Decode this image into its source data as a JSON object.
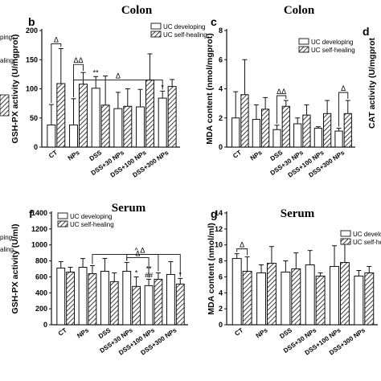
{
  "figure": {
    "left_fragment": {
      "legend_top": [
        "ping",
        "aling"
      ],
      "legend_bottom": [
        "ping",
        "aling"
      ]
    },
    "right_fragment": {
      "ylabel_top": "CAT activity (U/mgprot",
      "label_bottom": ""
    }
  },
  "chart_data": [
    {
      "id": "panel-b",
      "type": "bar",
      "panel_label": "b",
      "title": "Colon",
      "ylabel": "GSH-PX activity (U/mgprot)",
      "ylim": [
        0,
        200
      ],
      "yticks": [
        0,
        50,
        100,
        150,
        200
      ],
      "categories": [
        "CT",
        "NPs",
        "DSS",
        "DSS+30 NPs",
        "DSS+100 NPs",
        "DSS+300 NPs"
      ],
      "legend": [
        "UC developing",
        "UC self-healing"
      ],
      "series": [
        {
          "name": "UC developing",
          "values": [
            38,
            38,
            101,
            66,
            69,
            84
          ],
          "errors": [
            35,
            45,
            20,
            28,
            30,
            12
          ]
        },
        {
          "name": "UC self-healing",
          "values": [
            109,
            108,
            72,
            70,
            115,
            104
          ],
          "errors": [
            60,
            20,
            50,
            30,
            45,
            12
          ]
        }
      ],
      "bar_annotations": [
        {
          "category": 2,
          "series": 0,
          "text": "**"
        },
        {
          "category": 5,
          "series": 0,
          "text": "*"
        }
      ],
      "significance": [
        {
          "text": "Δ",
          "from": [
            0,
            0
          ],
          "to": [
            0,
            1
          ]
        },
        {
          "text": "ΔΔ",
          "from": [
            1,
            0
          ],
          "to": [
            1,
            1
          ]
        },
        {
          "text": "Δ",
          "from": [
            1,
            0
          ],
          "to": [
            5,
            0
          ]
        }
      ]
    },
    {
      "id": "panel-c",
      "type": "bar",
      "panel_label": "c",
      "title": "Colon",
      "ylabel": "MDA content (nmol/mgprot)",
      "ylim": [
        0,
        8
      ],
      "yticks": [
        0,
        2,
        4,
        6,
        8
      ],
      "categories": [
        "CT",
        "NPs",
        "DSS",
        "DSS+30 NPs",
        "DSS+100 NPs",
        "DSS+300 NPs"
      ],
      "legend": [
        "UC developing",
        "UC self-healing"
      ],
      "series": [
        {
          "name": "UC developing",
          "values": [
            2.0,
            1.9,
            1.2,
            1.6,
            1.3,
            1.1
          ],
          "errors": [
            1.8,
            1.0,
            0.3,
            0.4,
            0.1,
            0.2
          ]
        },
        {
          "name": "UC self-healing",
          "values": [
            3.6,
            2.6,
            2.8,
            2.2,
            2.3,
            2.3
          ],
          "errors": [
            2.4,
            0.8,
            0.4,
            0.7,
            0.9,
            0.9
          ]
        }
      ],
      "bar_annotations": [],
      "significance": [
        {
          "text": "ΔΔ",
          "from": [
            2,
            0
          ],
          "to": [
            2,
            1
          ]
        },
        {
          "text": "Δ",
          "from": [
            5,
            0
          ],
          "to": [
            5,
            1
          ]
        }
      ]
    },
    {
      "id": "panel-f",
      "type": "bar",
      "panel_label": "f",
      "title": "Serum",
      "ylabel": "GSH-PX activity (U/ml)",
      "ylim": [
        0,
        1400
      ],
      "yticks": [
        0,
        200,
        400,
        600,
        800,
        1000,
        1200,
        1400
      ],
      "categories": [
        "CT",
        "NPs",
        "DSS",
        "DSS+30 NPs",
        "DSS+100 NPs",
        "DSS+300 NPs"
      ],
      "legend": [
        "UC developing",
        "UC self-healing"
      ],
      "series": [
        {
          "name": "UC developing",
          "values": [
            710,
            720,
            670,
            670,
            490,
            630
          ],
          "errors": [
            80,
            110,
            160,
            110,
            80,
            160
          ]
        },
        {
          "name": "UC self-healing",
          "values": [
            660,
            640,
            540,
            480,
            570,
            510
          ],
          "errors": [
            60,
            100,
            110,
            120,
            80,
            70
          ]
        }
      ],
      "bar_annotations": [
        {
          "category": 3,
          "series": 1,
          "text": "*"
        },
        {
          "category": 4,
          "series": 0,
          "text": "##"
        },
        {
          "category": 4,
          "series": 0,
          "text": "**"
        },
        {
          "category": 5,
          "series": 1,
          "text": "*"
        }
      ],
      "significance": [
        {
          "text": "Δ",
          "from": [
            3,
            0
          ],
          "to": [
            4,
            0
          ]
        },
        {
          "text": "Δ",
          "from": [
            3,
            0
          ],
          "to": [
            4,
            1
          ]
        },
        {
          "text": "^",
          "from": [
            1,
            1
          ],
          "to": [
            5,
            1
          ]
        }
      ]
    },
    {
      "id": "panel-g",
      "type": "bar",
      "panel_label": "g",
      "title": "Serum",
      "ylabel": "MDA content (nmol/ml)",
      "ylim": [
        0,
        14
      ],
      "yticks": [
        0,
        2,
        4,
        6,
        8,
        10,
        12,
        14
      ],
      "categories": [
        "CT",
        "NPs",
        "DSS",
        "DSS+30 NPs",
        "DSS+100 NPs",
        "DSS+300 NPs"
      ],
      "legend": [
        "UC developi",
        "UC self-heal"
      ],
      "series": [
        {
          "name": "UC developi",
          "values": [
            8.3,
            6.5,
            6.6,
            7.5,
            7.3,
            6.1
          ],
          "errors": [
            0.6,
            1.0,
            1.4,
            1.8,
            2.6,
            0.7
          ]
        },
        {
          "name": "UC self-heal",
          "values": [
            6.7,
            7.7,
            7.0,
            6.1,
            7.8,
            6.5
          ],
          "errors": [
            1.8,
            2.1,
            2.0,
            0.4,
            2.6,
            0.8
          ]
        }
      ],
      "bar_annotations": [],
      "significance": [
        {
          "text": "Δ",
          "from": [
            0,
            0
          ],
          "to": [
            0,
            1
          ]
        }
      ]
    }
  ]
}
